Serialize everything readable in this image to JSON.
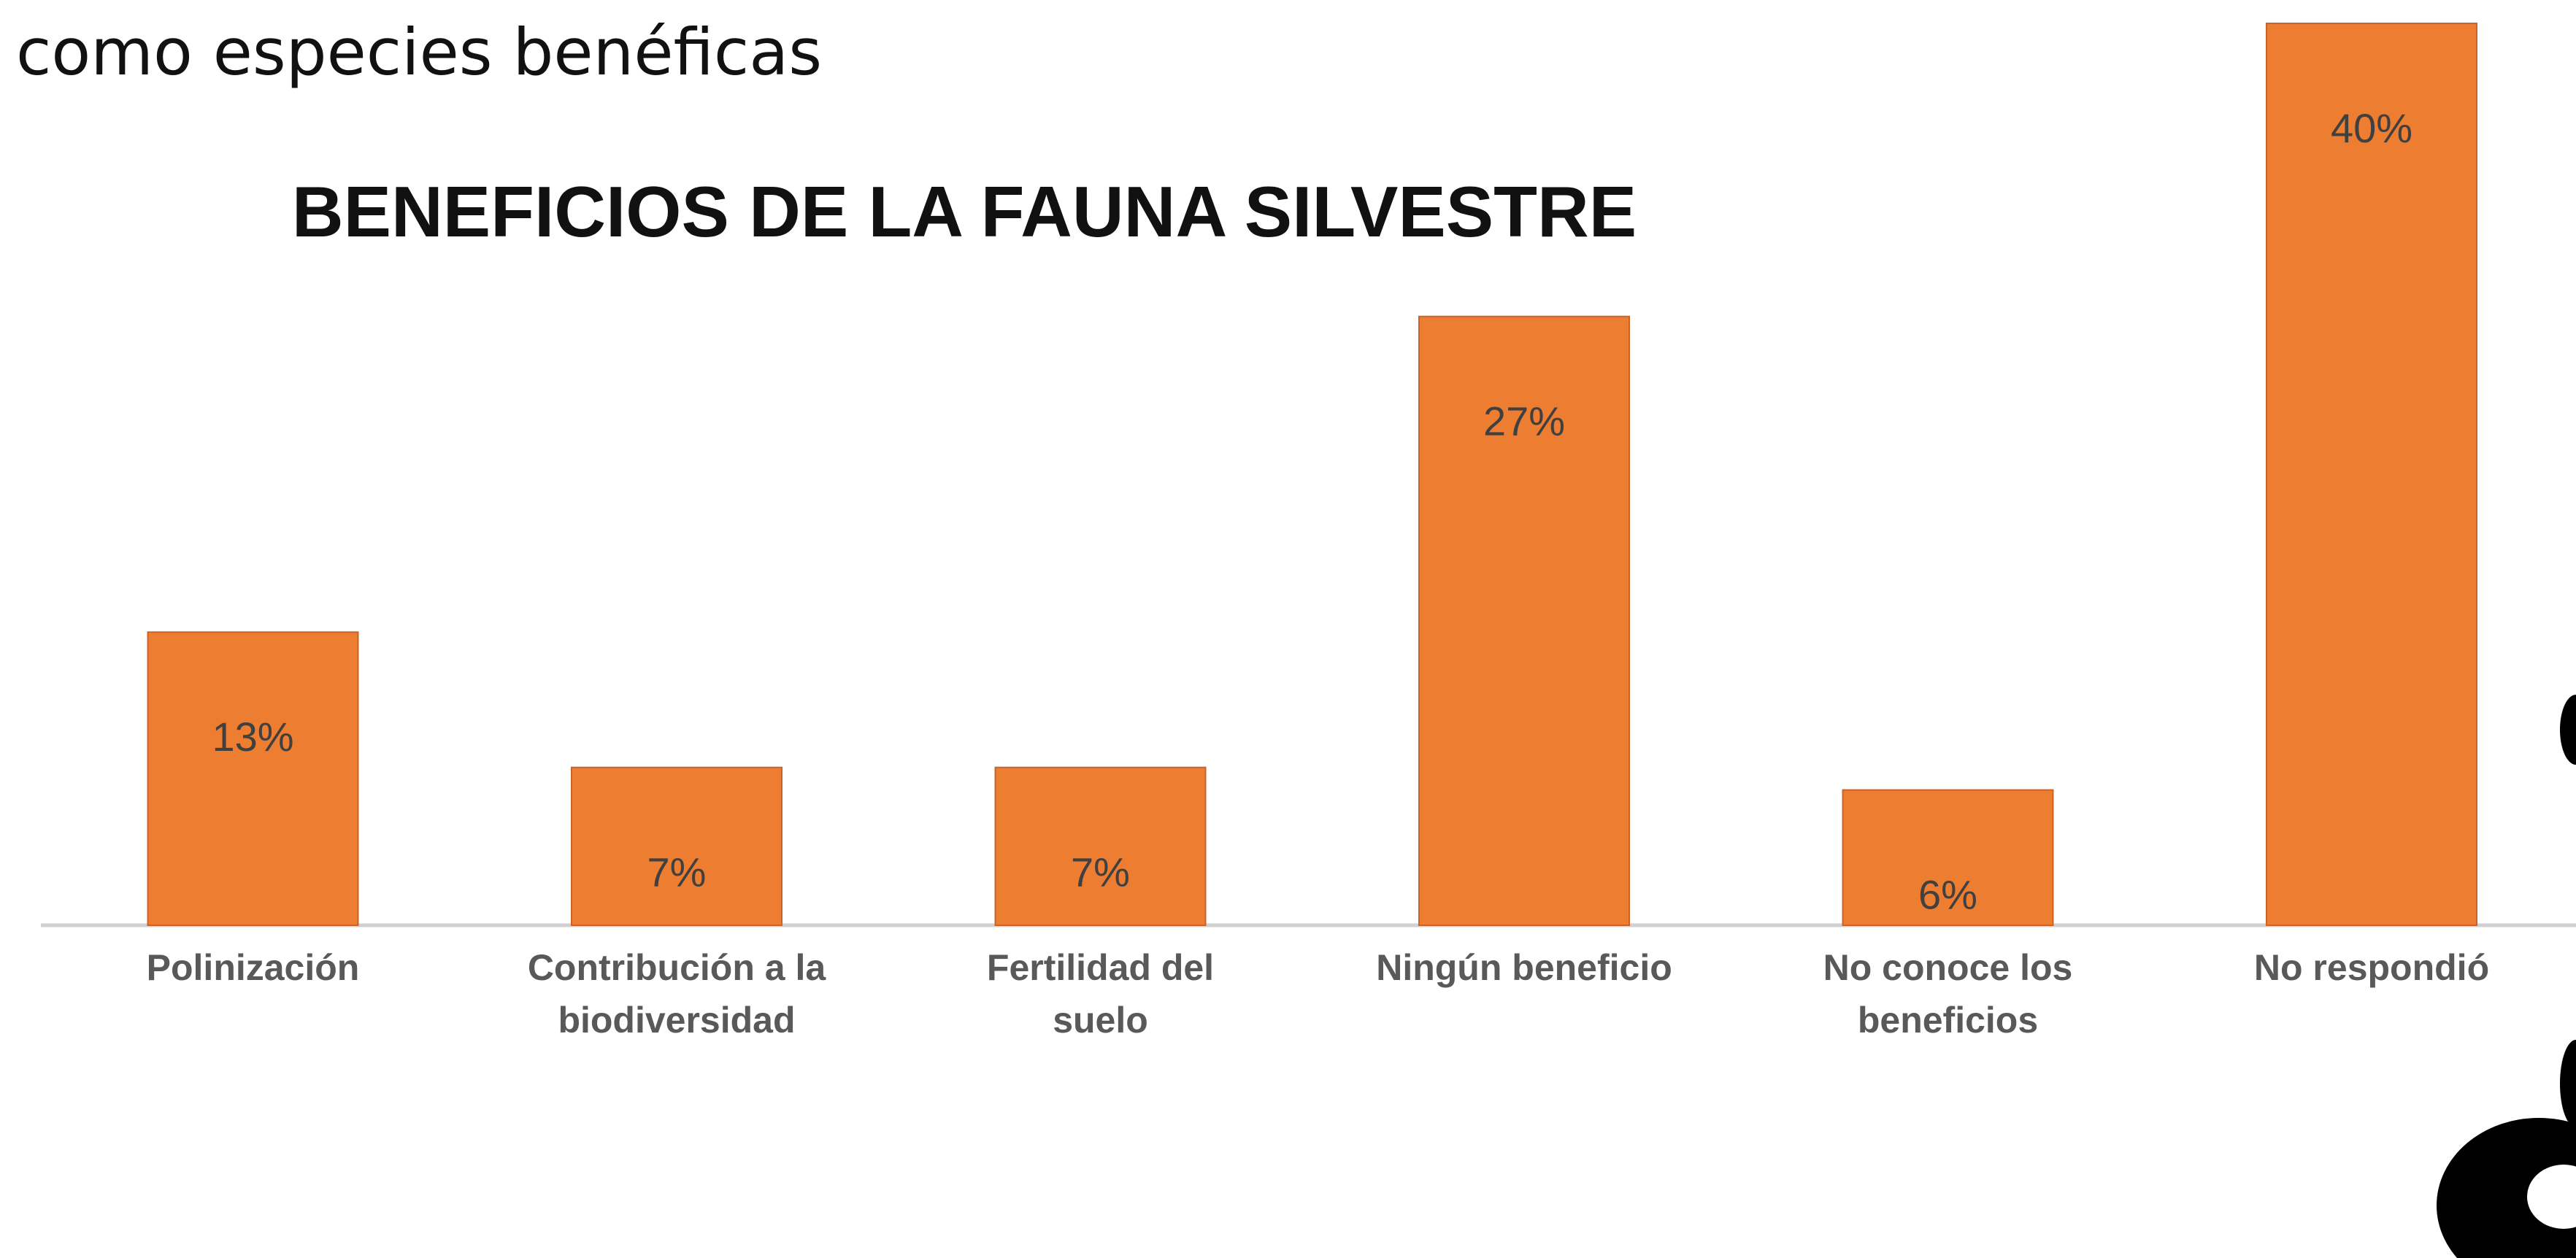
{
  "slide_text": "como especies benéficas",
  "chart_data": {
    "type": "bar",
    "title": "BENEFICIOS DE LA FAUNA SILVESTRE",
    "categories": [
      "Polinización",
      "Contribución a la\nbiodiversidad",
      "Fertilidad del\nsuelo",
      "Ningún beneficio",
      "No conoce los\nbeneficios",
      "No respondió"
    ],
    "values": [
      13,
      7,
      7,
      27,
      6,
      40
    ],
    "value_labels": [
      "13%",
      "7%",
      "7%",
      "27%",
      "6%",
      "40%"
    ],
    "color": "#ed7d31",
    "ylim": [
      0,
      40
    ]
  }
}
